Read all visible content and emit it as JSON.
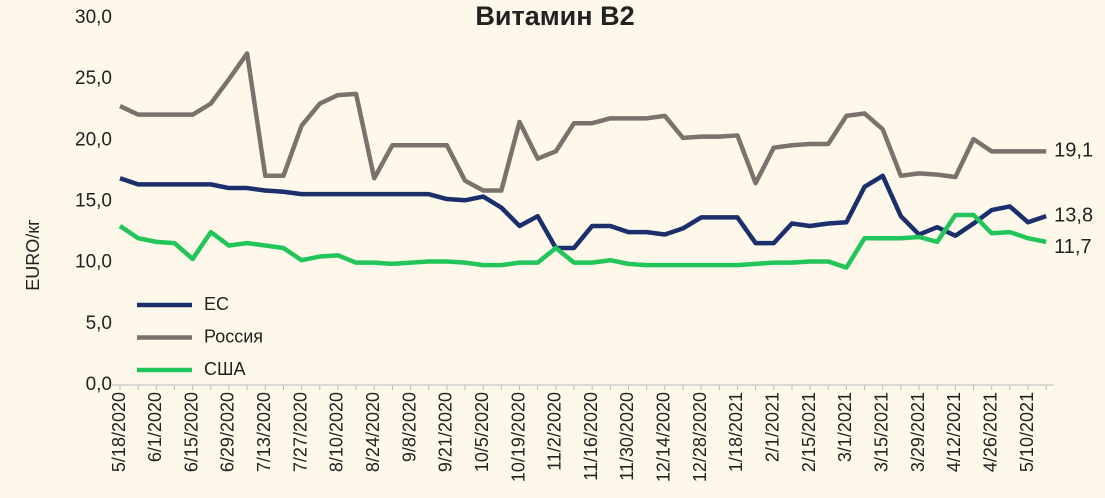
{
  "chart_data": {
    "type": "line",
    "title": "Витамин В2",
    "y_label": "EURO/кг",
    "categories": [
      "5/18/2020",
      null,
      "6/1/2020",
      null,
      "6/15/2020",
      null,
      "6/29/2020",
      null,
      "7/13/2020",
      null,
      "7/27/2020",
      null,
      "8/10/2020",
      null,
      "8/24/2020",
      null,
      "9/8/2020",
      null,
      "9/21/2020",
      null,
      "10/5/2020",
      null,
      "10/19/2020",
      null,
      "11/2/2020",
      null,
      "11/16/2020",
      null,
      "11/30/2020",
      null,
      "12/14/2020",
      null,
      "12/28/2020",
      null,
      "1/18/2021",
      null,
      "2/1/2021",
      null,
      "2/15/2021",
      null,
      "3/1/2021",
      null,
      "3/15/2021",
      null,
      "3/29/2021",
      null,
      "4/12/2021",
      null,
      "4/26/2021",
      null,
      "5/10/2021",
      null
    ],
    "series": [
      {
        "name": "ЕС",
        "color": "#1a2f6b",
        "values": [
          16.9,
          16.4,
          16.4,
          16.4,
          16.4,
          16.4,
          16.1,
          16.1,
          15.9,
          15.8,
          15.6,
          15.6,
          15.6,
          15.6,
          15.6,
          15.6,
          15.6,
          15.6,
          15.2,
          15.1,
          15.4,
          14.5,
          13.0,
          13.8,
          11.2,
          11.2,
          13.0,
          13.0,
          12.5,
          12.5,
          12.3,
          12.8,
          13.7,
          13.7,
          13.7,
          11.6,
          11.6,
          13.2,
          13.0,
          13.2,
          13.3,
          16.2,
          17.1,
          13.8,
          12.3,
          12.9,
          12.2,
          13.2,
          14.3,
          14.6,
          13.3,
          13.8
        ],
        "value_labels": [
          null,
          null,
          null,
          null,
          null,
          null,
          null,
          null,
          null,
          null,
          null,
          null,
          null,
          null,
          null,
          null,
          null,
          null,
          null,
          null,
          null,
          null,
          null,
          null,
          null,
          null,
          null,
          null,
          null,
          null,
          null,
          null,
          null,
          null,
          null,
          null,
          null,
          null,
          null,
          null,
          null,
          null,
          null,
          null,
          null,
          null,
          null,
          null,
          null,
          null,
          null,
          "13,8"
        ]
      },
      {
        "name": "Россия",
        "color": "#7c726d",
        "values": [
          22.8,
          22.1,
          22.1,
          22.1,
          22.1,
          23.0,
          25.0,
          27.1,
          17.1,
          17.1,
          21.2,
          23.0,
          23.7,
          23.8,
          16.9,
          19.6,
          19.6,
          19.6,
          19.6,
          16.7,
          15.9,
          15.9,
          21.5,
          18.5,
          19.1,
          21.4,
          21.4,
          21.8,
          21.8,
          21.8,
          22.0,
          20.2,
          20.3,
          20.3,
          20.4,
          16.5,
          19.4,
          19.6,
          19.7,
          19.7,
          22.0,
          22.2,
          20.9,
          17.1,
          17.3,
          17.2,
          17.0,
          20.1,
          19.1,
          19.1,
          19.1,
          19.1
        ],
        "value_labels": [
          null,
          null,
          null,
          null,
          null,
          null,
          null,
          null,
          null,
          null,
          null,
          null,
          null,
          null,
          null,
          null,
          null,
          null,
          null,
          null,
          null,
          null,
          null,
          null,
          null,
          null,
          null,
          null,
          null,
          null,
          null,
          null,
          null,
          null,
          null,
          null,
          null,
          null,
          null,
          null,
          null,
          null,
          null,
          null,
          null,
          null,
          null,
          null,
          null,
          null,
          null,
          "19,1"
        ]
      },
      {
        "name": "США",
        "color": "#22c55a",
        "values": [
          13.0,
          12.0,
          11.7,
          11.6,
          10.3,
          12.5,
          11.4,
          11.6,
          11.4,
          11.2,
          10.2,
          10.5,
          10.6,
          10.0,
          10.0,
          9.9,
          10.0,
          10.1,
          10.1,
          10.0,
          9.8,
          9.8,
          10.0,
          10.0,
          11.2,
          10.0,
          10.0,
          10.2,
          9.9,
          9.8,
          9.8,
          9.8,
          9.8,
          9.8,
          9.8,
          9.9,
          10.0,
          10.0,
          10.1,
          10.1,
          9.6,
          12.0,
          12.0,
          12.0,
          12.1,
          11.7,
          13.9,
          13.9,
          12.4,
          12.5,
          12.0,
          11.7
        ],
        "value_labels": [
          null,
          null,
          null,
          null,
          null,
          null,
          null,
          null,
          null,
          null,
          null,
          null,
          null,
          null,
          null,
          null,
          null,
          null,
          null,
          null,
          null,
          null,
          null,
          null,
          null,
          null,
          null,
          null,
          null,
          null,
          null,
          null,
          null,
          null,
          null,
          null,
          null,
          null,
          null,
          null,
          null,
          null,
          null,
          null,
          null,
          null,
          null,
          null,
          null,
          null,
          null,
          "11,7"
        ]
      }
    ],
    "ylim": [
      0,
      30
    ],
    "yticks": [
      {
        "value": 0,
        "label": "0,0"
      },
      {
        "value": 5,
        "label": "5,0"
      },
      {
        "value": 10,
        "label": "10,0"
      },
      {
        "value": 15,
        "label": "15,0"
      },
      {
        "value": 20,
        "label": "20,0"
      },
      {
        "value": 25,
        "label": "25,0"
      },
      {
        "value": 30,
        "label": "30,0"
      }
    ],
    "legend": "lower-left"
  }
}
